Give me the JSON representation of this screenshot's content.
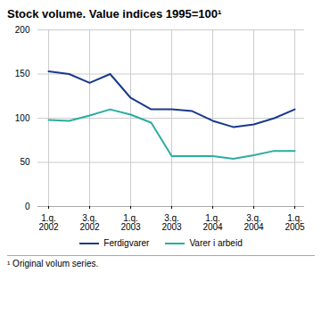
{
  "chart_data": {
    "type": "line",
    "title": "Stock volume. Value indices 1995=100¹",
    "categories": [
      "1.q.\n2002",
      null,
      "3.q.\n2002",
      null,
      "1.q.\n2003",
      null,
      "3.q.\n2003",
      null,
      "1.q.\n2004",
      null,
      "3.q.\n2004",
      null,
      "1.q.\n2005"
    ],
    "series": [
      {
        "name": "Ferdigvarer",
        "color": "#1a3a8a",
        "values": [
          153,
          150,
          140,
          150,
          123,
          110,
          110,
          108,
          97,
          90,
          93,
          100,
          110
        ]
      },
      {
        "name": "Varer i arbeid",
        "color": "#2aada0",
        "values": [
          98,
          97,
          103,
          110,
          104,
          95,
          57,
          57,
          57,
          54,
          58,
          63,
          63
        ]
      }
    ],
    "ylim": [
      0,
      200
    ],
    "yticks": [
      0,
      50,
      100,
      150,
      200
    ],
    "grid": true,
    "legend": "bottom",
    "annotations": [
      "¹ Original volum series."
    ]
  }
}
